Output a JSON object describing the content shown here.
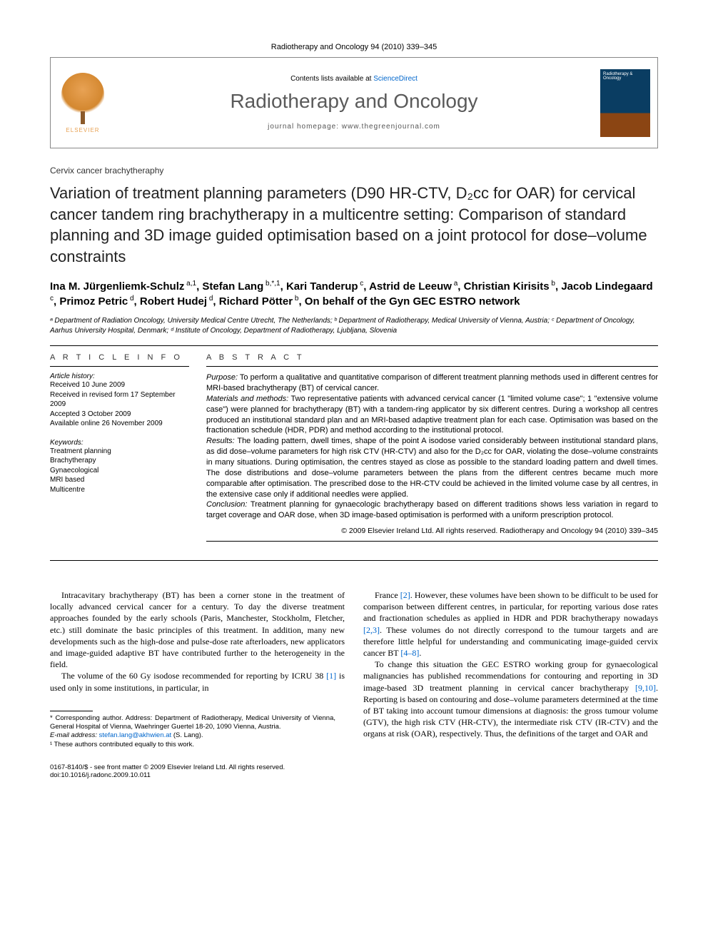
{
  "header": {
    "citation": "Radiotherapy and Oncology 94 (2010) 339–345",
    "contents_prefix": "Contents lists available at ",
    "contents_link": "ScienceDirect",
    "journal": "Radiotherapy and Oncology",
    "homepage_label": "journal homepage: ",
    "homepage_url": "www.thegreenjournal.com",
    "elsevier": "ELSEVIER",
    "cover_label": "Radiotherapy & Oncology"
  },
  "article": {
    "type": "Cervix cancer brachytheraphy",
    "title": "Variation of treatment planning parameters (D90 HR-CTV, D₂cc for OAR) for cervical cancer tandem ring brachytherapy in a multicentre setting: Comparison of standard planning and 3D image guided optimisation based on a joint protocol for dose–volume constraints"
  },
  "authors_html": "Ina M. Jürgenliemk-Schulz<sup> a,1</sup>, Stefan Lang<sup> b,*,1</sup>, Kari Tanderup<sup> c</sup>, Astrid de Leeuw<sup> a</sup>, Christian Kirisits<sup> b</sup>, Jacob Lindegaard<sup> c</sup>, Primoz Petric<sup> d</sup>, Robert Hudej<sup> d</sup>, Richard Pötter<sup> b</sup>, On behalf of the Gyn GEC ESTRO network",
  "affiliations": "ᵃ Department of Radiation Oncology, University Medical Centre Utrecht, The Netherlands; ᵇ Department of Radiotherapy, Medical University of Vienna, Austria; ᶜ Department of Oncology, Aarhus University Hospital, Denmark; ᵈ Institute of Oncology, Department of Radiotherapy, Ljubljana, Slovenia",
  "info": {
    "heading": "A R T I C L E   I N F O",
    "history_label": "Article history:",
    "history": "Received 10 June 2009\nReceived in revised form 17 September 2009\nAccepted 3 October 2009\nAvailable online 26 November 2009",
    "keywords_label": "Keywords:",
    "keywords": "Treatment planning\nBrachytherapy\nGynaecological\nMRI based\nMulticentre"
  },
  "abstract": {
    "heading": "A B S T R A C T",
    "purpose_label": "Purpose:",
    "purpose": " To perform a qualitative and quantitative comparison of different treatment planning methods used in different centres for MRI-based brachytherapy (BT) of cervical cancer.",
    "mm_label": "Materials and methods:",
    "mm": " Two representative patients with advanced cervical cancer (1 \"limited volume case\"; 1 \"extensive volume case\") were planned for brachytherapy (BT) with a tandem-ring applicator by six different centres. During a workshop all centres produced an institutional standard plan and an MRI-based adaptive treatment plan for each case. Optimisation was based on the fractionation schedule (HDR, PDR) and method according to the institutional protocol.",
    "results_label": "Results:",
    "results": " The loading pattern, dwell times, shape of the point A isodose varied considerably between institutional standard plans, as did dose–volume parameters for high risk CTV (HR-CTV) and also for the D₂cc for OAR, violating the dose–volume constraints in many situations. During optimisation, the centres stayed as close as possible to the standard loading pattern and dwell times. The dose distributions and dose–volume parameters between the plans from the different centres became much more comparable after optimisation. The prescribed dose to the HR-CTV could be achieved in the limited volume case by all centres, in the extensive case only if additional needles were applied.",
    "conclusion_label": "Conclusion:",
    "conclusion": " Treatment planning for gynaecologic brachytherapy based on different traditions shows less variation in regard to target coverage and OAR dose, when 3D image-based optimisation is performed with a uniform prescription protocol.",
    "copyright": "© 2009 Elsevier Ireland Ltd. All rights reserved. Radiotherapy and Oncology 94 (2010) 339–345"
  },
  "body": {
    "p1": "Intracavitary brachytherapy (BT) has been a corner stone in the treatment of locally advanced cervical cancer for a century. To day the diverse treatment approaches founded by the early schools (Paris, Manchester, Stockholm, Fletcher, etc.) still dominate the basic principles of this treatment. In addition, many new developments such as the high-dose and pulse-dose rate afterloaders, new applicators and image-guided adaptive BT have contributed further to the heterogeneity in the field.",
    "p2a": "The volume of the 60 Gy isodose recommended for reporting by ICRU 38 ",
    "p2_ref1": "[1]",
    "p2b": " is used only in some institutions, in particular, in",
    "p3a": "France ",
    "p3_ref2": "[2]",
    "p3b": ". However, these volumes have been shown to be difficult to be used for comparison between different centres, in particular, for reporting various dose rates and fractionation schedules as applied in HDR and PDR brachytherapy nowadays ",
    "p3_ref23": "[2,3]",
    "p3c": ". These volumes do not directly correspond to the tumour targets and are therefore little helpful for understanding and communicating image-guided cervix cancer BT ",
    "p3_ref48": "[4–8]",
    "p3d": ".",
    "p4a": "To change this situation the GEC ESTRO working group for gynaecological malignancies has published recommendations for contouring and reporting in 3D image-based 3D treatment planning in cervical cancer brachytherapy ",
    "p4_ref910": "[9,10]",
    "p4b": ". Reporting is based on contouring and dose–volume parameters determined at the time of BT taking into account tumour dimensions at diagnosis: the gross tumour volume (GTV), the high risk CTV (HR-CTV), the intermediate risk CTV (IR-CTV) and the organs at risk (OAR), respectively. Thus, the definitions of the target and OAR and"
  },
  "footnotes": {
    "corr": "* Corresponding author. Address: Department of Radiotherapy, Medical University of Vienna, General Hospital of Vienna, Waehringer Guertel 18-20, 1090 Vienna, Austria.",
    "email_label": "E-mail address: ",
    "email": "stefan.lang@akhwien.at",
    "email_suffix": " (S. Lang).",
    "note1": "¹ These authors contributed equally to this work."
  },
  "bottom": {
    "left": "0167-8140/$ - see front matter © 2009 Elsevier Ireland Ltd. All rights reserved.",
    "doi": "doi:10.1016/j.radonc.2009.10.011"
  },
  "colors": {
    "link": "#0066cc",
    "elsevier": "#e8a254",
    "cover_top": "#0a3d62"
  }
}
